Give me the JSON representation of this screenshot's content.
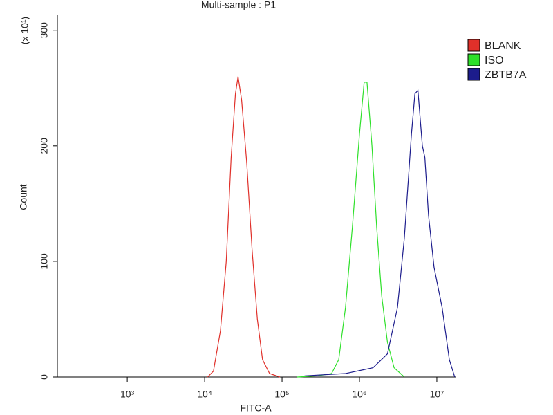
{
  "chart_data": {
    "type": "line",
    "title": "Multi-sample : P1",
    "xlabel": "FITC-A",
    "ylabel": "Count",
    "y_multiplier": "(x 10¹)",
    "xscale": "log",
    "xlim": [
      125,
      17800000
    ],
    "ylim": [
      0,
      313
    ],
    "xticks": [
      {
        "value": 1000,
        "label": "10³"
      },
      {
        "value": 10000,
        "label": "10⁴"
      },
      {
        "value": 100000,
        "label": "10⁵"
      },
      {
        "value": 1000000,
        "label": "10⁶"
      },
      {
        "value": 10000000,
        "label": "10⁷"
      }
    ],
    "yticks": [
      0,
      100,
      200,
      300
    ],
    "legend": "upper right",
    "series": [
      {
        "name": "BLANK",
        "color": "#e0302a",
        "x": [
          10900,
          13000,
          16000,
          19000,
          22000,
          25000,
          27000,
          30000,
          35000,
          41000,
          48000,
          56000,
          69000,
          94000
        ],
        "values": [
          0,
          5,
          40,
          100,
          190,
          245,
          260,
          240,
          185,
          110,
          50,
          15,
          3,
          0
        ]
      },
      {
        "name": "ISO",
        "color": "#2ee02a",
        "x": [
          157000,
          290000,
          437000,
          540000,
          660000,
          810000,
          1000000,
          1150000,
          1250000,
          1450000,
          1670000,
          1940000,
          2300000,
          2800000,
          3800000
        ],
        "values": [
          0,
          1,
          3,
          15,
          60,
          130,
          210,
          255,
          255,
          200,
          130,
          70,
          30,
          8,
          0
        ]
      },
      {
        "name": "ZBTB7A",
        "color": "#1c1c8c",
        "x": [
          195000,
          660000,
          1500000,
          2300000,
          3100000,
          3800000,
          4700000,
          5200000,
          5700000,
          6500000,
          7000000,
          7800000,
          9200000,
          11700000,
          14500000,
          17000000
        ],
        "values": [
          1,
          3,
          8,
          20,
          60,
          120,
          210,
          245,
          248,
          200,
          190,
          140,
          95,
          60,
          15,
          0
        ]
      }
    ]
  }
}
